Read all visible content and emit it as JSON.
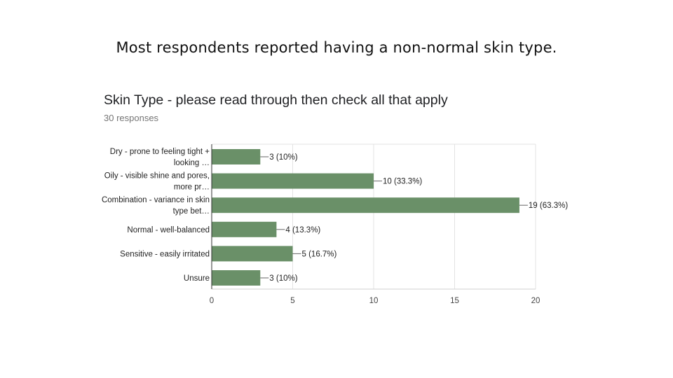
{
  "slide": {
    "heading": "Most respondents reported having a non-normal skin type."
  },
  "chart_data": {
    "type": "bar",
    "orientation": "horizontal",
    "title": "Skin Type - please read through then check all that apply",
    "subtitle": "30 responses",
    "categories": [
      [
        "Dry - prone to feeling tight +",
        "looking …"
      ],
      [
        "Oily - visible shine and pores,",
        "more pr…"
      ],
      [
        "Combination - variance in skin",
        "type bet…"
      ],
      [
        "Normal - well-balanced"
      ],
      [
        "Sensitive - easily irritated"
      ],
      [
        "Unsure"
      ]
    ],
    "values": [
      3,
      10,
      19,
      4,
      5,
      3
    ],
    "data_labels": [
      "3 (10%)",
      "10 (33.3%)",
      "19 (63.3%)",
      "4 (13.3%)",
      "5 (16.7%)",
      "3 (10%)"
    ],
    "xlim": [
      0,
      20
    ],
    "xticks": [
      0,
      5,
      10,
      15,
      20
    ],
    "grid": true,
    "bar_color": "#6a9068"
  }
}
